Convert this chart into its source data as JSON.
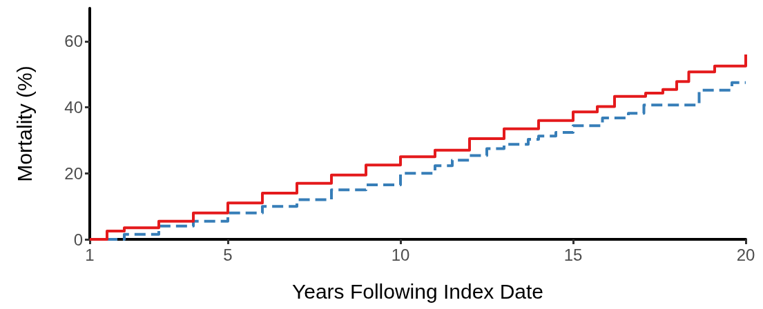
{
  "chart_data": {
    "type": "step",
    "xlabel": "Years Following Index Date",
    "ylabel": "Mortality (%)",
    "xlim": [
      1,
      20
    ],
    "xticks": [
      1,
      5,
      10,
      15,
      20
    ],
    "ylim": [
      0,
      70
    ],
    "yticks": [
      0,
      20,
      40,
      60
    ],
    "grid": false,
    "marker": "none",
    "series": [
      {
        "color": "#e41a1c",
        "line_style": "solid",
        "x": [
          1,
          1.5,
          2,
          3,
          4,
          5,
          6,
          7,
          8,
          9,
          10,
          11,
          12,
          13,
          14,
          15,
          15.7,
          16.2,
          17.1,
          17.6,
          18,
          18.35,
          19.1,
          20,
          20
        ],
        "values": [
          0,
          2.5,
          3.5,
          5.5,
          8,
          11,
          14,
          17,
          19.5,
          22.5,
          25,
          27,
          30.5,
          33.5,
          36,
          38.6,
          40.2,
          43.3,
          44.3,
          45.4,
          47.8,
          50.7,
          52.5,
          52.5,
          56
        ]
      },
      {
        "color": "#377eb8",
        "line_style": "dashed",
        "x": [
          1,
          2,
          3,
          4,
          5,
          6,
          7,
          8,
          9,
          10,
          11,
          11.5,
          12,
          12.5,
          13,
          13.7,
          14,
          14.5,
          15,
          15.85,
          16.6,
          17.05,
          18.65,
          19.6,
          20
        ],
        "values": [
          0,
          1.5,
          4,
          5.5,
          8,
          10,
          12,
          15,
          16.5,
          20,
          22.3,
          24,
          25.4,
          27.5,
          28.8,
          30.3,
          31.3,
          32.4,
          34.4,
          36.8,
          38.2,
          40.7,
          45.2,
          47.5,
          47.5
        ]
      }
    ]
  }
}
